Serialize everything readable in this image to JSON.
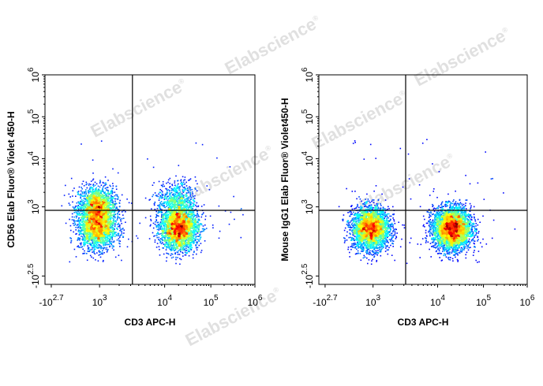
{
  "watermark": "Elabscience",
  "watermark_mark": "®",
  "chart_data": [
    {
      "type": "scatter",
      "subtype": "flow-cytometry-pseudocolor-density",
      "xlabel": "CD3 APC-H",
      "ylabel": "CD56 Elab Fluor® Violet 450-H",
      "x_scale": "biexponential",
      "y_scale": "biexponential",
      "x_ticks": [
        {
          "base": "-10",
          "exp": "2.7",
          "value": -501
        },
        {
          "base": "10",
          "exp": "3",
          "value": 1000
        },
        {
          "base": "10",
          "exp": "4",
          "value": 10000
        },
        {
          "base": "10",
          "exp": "5",
          "value": 100000
        },
        {
          "base": "10",
          "exp": "6",
          "value": 1000000
        }
      ],
      "y_ticks": [
        {
          "base": "-10",
          "exp": "2.5",
          "value": -316
        },
        {
          "base": "10",
          "exp": "3",
          "value": 1000
        },
        {
          "base": "10",
          "exp": "4",
          "value": 10000
        },
        {
          "base": "10",
          "exp": "5",
          "value": 100000
        },
        {
          "base": "10",
          "exp": "6",
          "value": 1000000
        }
      ],
      "gates": {
        "x": 3200,
        "y": 630
      },
      "populations": [
        {
          "x": 450,
          "y": 1000,
          "weight": 0.26
        },
        {
          "x": 450,
          "y": 60,
          "weight": 0.26
        },
        {
          "x": 20000,
          "y": 60,
          "weight": 0.38
        },
        {
          "x": 18000,
          "y": 1300,
          "weight": 0.1
        }
      ],
      "grid": false,
      "legend": "none"
    },
    {
      "type": "scatter",
      "subtype": "flow-cytometry-pseudocolor-density",
      "xlabel": "CD3 APC-H",
      "ylabel": "Mouse IgG1 Elab Fluor® Violet450-H",
      "x_scale": "biexponential",
      "y_scale": "biexponential",
      "x_ticks": [
        {
          "base": "-10",
          "exp": "2.7",
          "value": -501
        },
        {
          "base": "10",
          "exp": "3",
          "value": 1000
        },
        {
          "base": "10",
          "exp": "4",
          "value": 10000
        },
        {
          "base": "10",
          "exp": "5",
          "value": 100000
        },
        {
          "base": "10",
          "exp": "6",
          "value": 1000000
        }
      ],
      "y_ticks": [
        {
          "base": "-10",
          "exp": "2.5",
          "value": -316
        },
        {
          "base": "10",
          "exp": "3",
          "value": 1000
        },
        {
          "base": "10",
          "exp": "4",
          "value": 10000
        },
        {
          "base": "10",
          "exp": "5",
          "value": 100000
        },
        {
          "base": "10",
          "exp": "6",
          "value": 1000000
        }
      ],
      "gates": {
        "x": 3200,
        "y": 630
      },
      "populations": [
        {
          "x": 450,
          "y": 60,
          "weight": 0.45
        },
        {
          "x": 20000,
          "y": 60,
          "weight": 0.55
        }
      ],
      "grid": false,
      "legend": "none"
    }
  ]
}
